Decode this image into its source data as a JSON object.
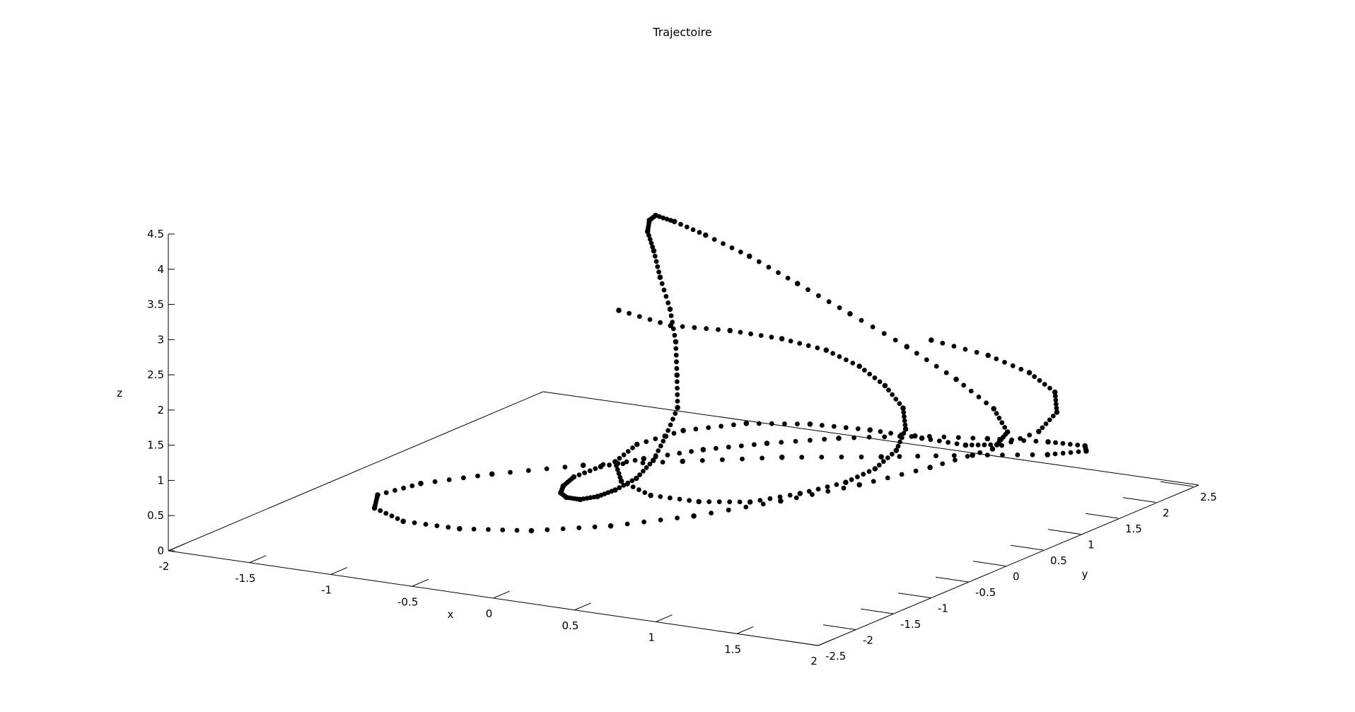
{
  "chart_data": {
    "type": "scatter",
    "title": "Trajectoire",
    "xlabel": "x",
    "ylabel": "y",
    "zlabel": "z",
    "xlim": [
      -2,
      2
    ],
    "ylim": [
      -2.5,
      2.5
    ],
    "zlim": [
      0,
      4.5
    ],
    "x_ticks": [
      "-2",
      "-1.5",
      "-1",
      "-0.5",
      "0",
      "0.5",
      "1",
      "1.5",
      "2"
    ],
    "y_ticks": [
      "-2.5",
      "-2",
      "-1.5",
      "-1",
      "-0.5",
      "0",
      "0.5",
      "1",
      "1.5",
      "2",
      "2.5"
    ],
    "z_ticks": [
      "0",
      "0.5",
      "1",
      "1.5",
      "2",
      "2.5",
      "3",
      "3.5",
      "4",
      "4.5"
    ],
    "grid": false,
    "legend": "none",
    "marker": "filled-circle",
    "marker_color": "#000000",
    "points_xyz": [
      [
        -1.05,
        1.45,
        1.95
      ],
      [
        -0.8,
        1.6,
        1.75
      ],
      [
        -0.55,
        1.85,
        1.65
      ],
      [
        -0.3,
        2.0,
        1.55
      ],
      [
        -0.05,
        2.05,
        1.45
      ],
      [
        0.2,
        1.95,
        1.35
      ],
      [
        0.45,
        1.75,
        1.25
      ],
      [
        0.7,
        1.45,
        1.15
      ],
      [
        0.9,
        1.05,
        1.1
      ],
      [
        1.05,
        0.6,
        1.05
      ],
      [
        1.15,
        0.1,
        1.05
      ],
      [
        1.2,
        -0.4,
        1.1
      ],
      [
        1.15,
        -0.9,
        1.15
      ],
      [
        1.05,
        -1.35,
        1.2
      ],
      [
        0.85,
        -1.6,
        1.25
      ],
      [
        0.6,
        -1.7,
        1.3
      ],
      [
        0.35,
        -1.55,
        1.35
      ],
      [
        0.15,
        -1.2,
        1.4
      ],
      [
        0.1,
        -0.8,
        1.45
      ],
      [
        0.2,
        -0.4,
        1.5
      ],
      [
        0.45,
        -0.1,
        1.55
      ],
      [
        0.75,
        0.1,
        1.55
      ],
      [
        1.05,
        0.25,
        1.5
      ],
      [
        1.3,
        0.4,
        1.4
      ],
      [
        1.5,
        0.55,
        1.3
      ],
      [
        1.6,
        0.75,
        1.25
      ],
      [
        1.55,
        1.0,
        1.3
      ],
      [
        1.35,
        1.25,
        1.45
      ],
      [
        1.05,
        1.4,
        1.7
      ],
      [
        0.7,
        1.5,
        2.0
      ],
      [
        0.35,
        1.5,
        2.35
      ],
      [
        0.05,
        1.45,
        2.7
      ],
      [
        -0.2,
        1.35,
        3.05
      ],
      [
        -0.4,
        1.2,
        3.35
      ],
      [
        -0.5,
        1.0,
        3.6
      ],
      [
        -0.5,
        0.75,
        3.8
      ],
      [
        -0.4,
        0.45,
        3.9
      ],
      [
        -0.25,
        0.1,
        3.95
      ],
      [
        -0.05,
        -0.25,
        3.9
      ],
      [
        0.15,
        -0.6,
        3.75
      ],
      [
        0.35,
        -0.9,
        3.5
      ],
      [
        0.5,
        -1.15,
        3.2
      ],
      [
        0.6,
        -1.35,
        2.85
      ],
      [
        0.65,
        -1.45,
        2.45
      ],
      [
        0.6,
        -1.5,
        2.05
      ],
      [
        0.5,
        -1.45,
        1.65
      ],
      [
        0.35,
        -1.35,
        1.3
      ],
      [
        0.15,
        -1.2,
        1.0
      ],
      [
        -0.05,
        -1.0,
        0.75
      ],
      [
        -0.25,
        -0.8,
        0.55
      ],
      [
        -0.45,
        -0.55,
        0.4
      ],
      [
        -0.6,
        -0.3,
        0.3
      ],
      [
        -0.7,
        -0.05,
        0.25
      ],
      [
        -0.75,
        0.2,
        0.25
      ],
      [
        -0.7,
        0.45,
        0.3
      ],
      [
        -0.55,
        0.7,
        0.35
      ],
      [
        -0.3,
        0.95,
        0.45
      ],
      [
        0.0,
        1.15,
        0.55
      ],
      [
        0.35,
        1.35,
        0.65
      ],
      [
        0.75,
        1.5,
        0.75
      ],
      [
        1.15,
        1.6,
        0.8
      ],
      [
        1.5,
        1.65,
        0.85
      ],
      [
        1.75,
        1.6,
        0.9
      ],
      [
        1.85,
        1.4,
        0.95
      ],
      [
        1.75,
        1.1,
        1.0
      ],
      [
        1.45,
        0.75,
        1.05
      ],
      [
        1.05,
        0.4,
        1.05
      ],
      [
        0.6,
        0.05,
        1.05
      ],
      [
        0.15,
        -0.3,
        1.0
      ],
      [
        -0.3,
        -0.65,
        0.95
      ],
      [
        -0.7,
        -1.0,
        0.85
      ],
      [
        -1.0,
        -1.3,
        0.75
      ],
      [
        -1.15,
        -1.55,
        0.65
      ],
      [
        -1.1,
        -1.7,
        0.55
      ],
      [
        -0.9,
        -1.75,
        0.45
      ],
      [
        -0.6,
        -1.65,
        0.4
      ],
      [
        -0.25,
        -1.45,
        0.4
      ],
      [
        0.1,
        -1.15,
        0.45
      ],
      [
        0.45,
        -0.8,
        0.55
      ],
      [
        0.8,
        -0.4,
        0.7
      ],
      [
        1.1,
        0.0,
        0.85
      ],
      [
        1.35,
        0.4,
        1.0
      ],
      [
        1.55,
        0.8,
        1.15
      ],
      [
        1.65,
        1.2,
        1.25
      ],
      [
        1.6,
        1.55,
        1.35
      ],
      [
        1.45,
        1.85,
        1.45
      ],
      [
        1.2,
        2.05,
        1.55
      ],
      [
        0.9,
        2.15,
        1.65
      ],
      [
        0.55,
        2.15,
        1.75
      ]
    ]
  }
}
